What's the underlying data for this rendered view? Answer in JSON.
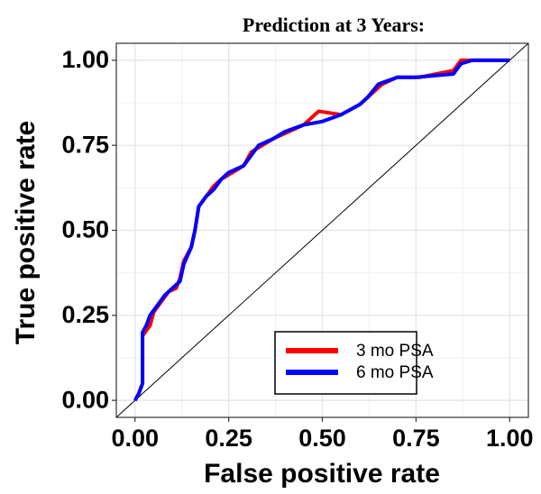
{
  "chart_data": {
    "type": "line",
    "title": "Prediction at 3 Years:",
    "xlabel": "False positive rate",
    "ylabel": "True positive rate",
    "xlim": [
      -0.05,
      1.05
    ],
    "ylim": [
      -0.05,
      1.05
    ],
    "xticks": [
      {
        "value": 0,
        "label": "0.00"
      },
      {
        "value": 0.25,
        "label": "0.25"
      },
      {
        "value": 0.5,
        "label": "0.50"
      },
      {
        "value": 0.75,
        "label": "0.75"
      },
      {
        "value": 1,
        "label": "1.00"
      }
    ],
    "yticks": [
      {
        "value": 0,
        "label": "0.00"
      },
      {
        "value": 0.25,
        "label": "0.25"
      },
      {
        "value": 0.5,
        "label": "0.50"
      },
      {
        "value": 0.75,
        "label": "0.75"
      },
      {
        "value": 1,
        "label": "1.00"
      }
    ],
    "grid": true,
    "legend": "bottom-right",
    "series": [
      {
        "name": "3 mo PSA",
        "color": "#ff0000",
        "x": [
          0,
          0.01,
          0.02,
          0.02,
          0.04,
          0.05,
          0.07,
          0.09,
          0.11,
          0.12,
          0.13,
          0.15,
          0.16,
          0.17,
          0.19,
          0.21,
          0.23,
          0.26,
          0.29,
          0.31,
          0.34,
          0.37,
          0.41,
          0.45,
          0.49,
          0.55,
          0.6,
          0.62,
          0.66,
          0.7,
          0.76,
          0.85,
          0.87,
          0.9,
          1.0
        ],
        "values": [
          0,
          0.02,
          0.05,
          0.19,
          0.22,
          0.26,
          0.29,
          0.32,
          0.33,
          0.36,
          0.41,
          0.45,
          0.5,
          0.57,
          0.6,
          0.63,
          0.65,
          0.67,
          0.69,
          0.73,
          0.75,
          0.77,
          0.79,
          0.81,
          0.85,
          0.84,
          0.87,
          0.89,
          0.93,
          0.95,
          0.95,
          0.97,
          1.0,
          1.0,
          1.0
        ]
      },
      {
        "name": "6 mo PSA",
        "color": "#0000ff",
        "x": [
          0,
          0.01,
          0.02,
          0.02,
          0.03,
          0.04,
          0.06,
          0.08,
          0.1,
          0.12,
          0.13,
          0.15,
          0.16,
          0.17,
          0.19,
          0.21,
          0.23,
          0.25,
          0.29,
          0.31,
          0.33,
          0.37,
          0.4,
          0.45,
          0.5,
          0.55,
          0.6,
          0.62,
          0.65,
          0.7,
          0.75,
          0.85,
          0.87,
          0.9,
          1.0
        ],
        "values": [
          0,
          0.02,
          0.05,
          0.2,
          0.22,
          0.25,
          0.28,
          0.31,
          0.33,
          0.35,
          0.4,
          0.45,
          0.5,
          0.57,
          0.6,
          0.62,
          0.65,
          0.67,
          0.69,
          0.72,
          0.75,
          0.77,
          0.79,
          0.81,
          0.82,
          0.84,
          0.87,
          0.89,
          0.93,
          0.95,
          0.95,
          0.96,
          0.99,
          1.0,
          1.0
        ]
      }
    ]
  }
}
